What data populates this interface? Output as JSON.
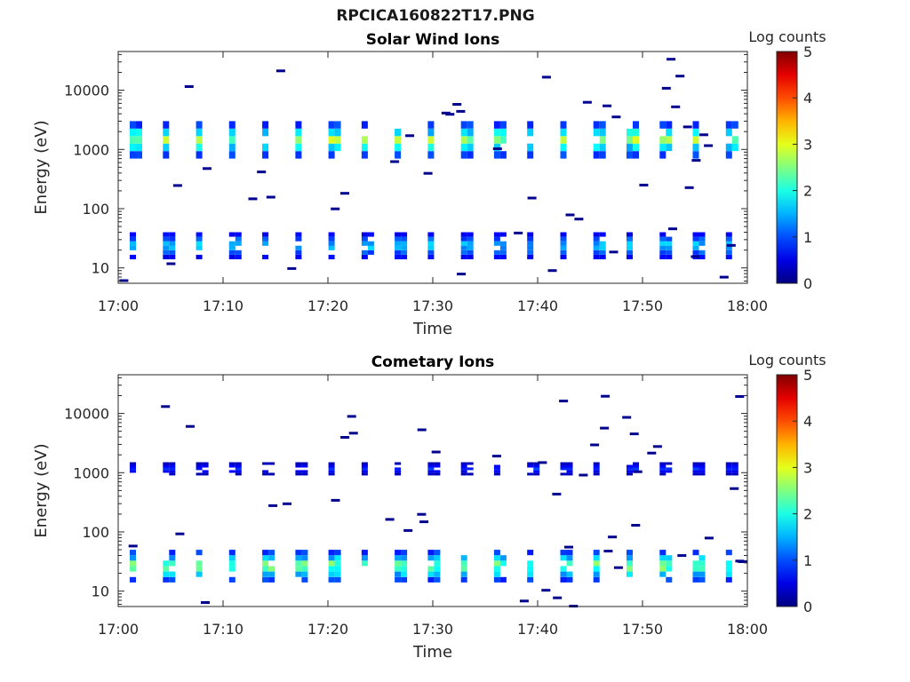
{
  "figure": {
    "title": "RPCICA160822T17.PNG"
  },
  "chart_data": [
    {
      "type": "heatmap",
      "title": "Solar Wind Ions",
      "xlabel": "Time",
      "ylabel": "Energy (eV)",
      "x_range": [
        "17:00",
        "18:00"
      ],
      "x_ticks": [
        "17:00",
        "17:10",
        "17:20",
        "17:30",
        "17:40",
        "17:50",
        "18:00"
      ],
      "y_scale": "log",
      "y_range": [
        5.5,
        45000
      ],
      "y_ticks": [
        10,
        100,
        1000,
        10000
      ],
      "y_tick_labels": [
        "10",
        "100",
        "1000",
        "10000"
      ],
      "colorbar": {
        "label": "Log counts",
        "range": [
          0,
          5
        ],
        "ticks": [
          "0",
          "1",
          "2",
          "3",
          "4",
          "5"
        ],
        "colormap": "jet"
      },
      "bands": [
        {
          "energy_min": 700,
          "energy_max": 3000,
          "peak_log_counts": 3.0
        },
        {
          "energy_min": 14,
          "energy_max": 40,
          "peak_log_counts": 2.0
        }
      ],
      "grid": false
    },
    {
      "type": "heatmap",
      "title": "Cometary Ions",
      "xlabel": "Time",
      "ylabel": "Energy (eV)",
      "x_range": [
        "17:00",
        "18:00"
      ],
      "x_ticks": [
        "17:00",
        "17:10",
        "17:20",
        "17:30",
        "17:40",
        "17:50",
        "18:00"
      ],
      "y_scale": "log",
      "y_range": [
        5.5,
        45000
      ],
      "y_ticks": [
        10,
        100,
        1000,
        10000
      ],
      "y_tick_labels": [
        "10",
        "100",
        "1000",
        "10000"
      ],
      "colorbar": {
        "label": "Log counts",
        "range": [
          0,
          5
        ],
        "ticks": [
          "0",
          "1",
          "2",
          "3",
          "4",
          "5"
        ],
        "colormap": "jet"
      },
      "bands": [
        {
          "energy_min": 900,
          "energy_max": 1500,
          "peak_log_counts": 1.0
        },
        {
          "energy_min": 14,
          "energy_max": 50,
          "peak_log_counts": 3.0
        }
      ],
      "grid": false
    }
  ]
}
